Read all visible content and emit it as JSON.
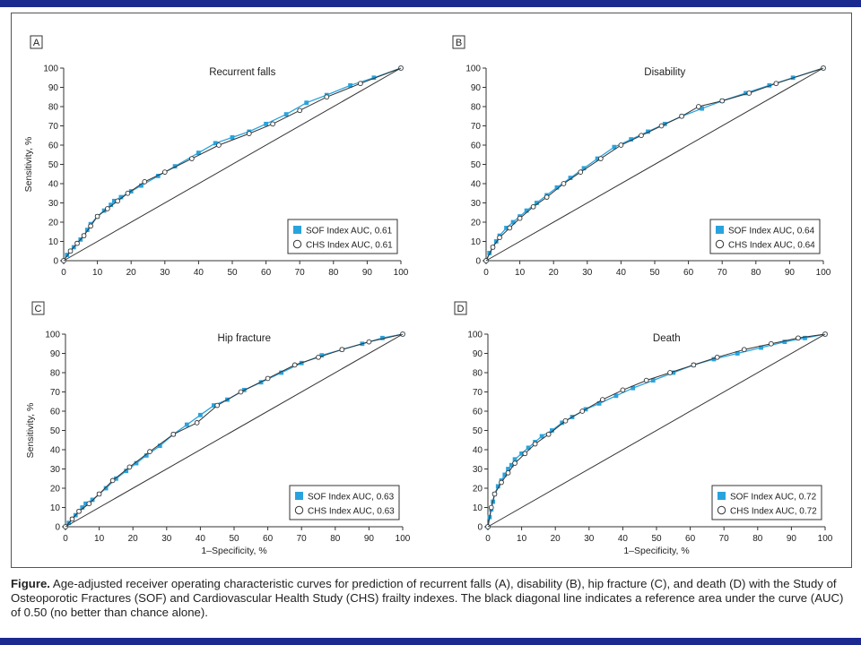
{
  "caption": {
    "label": "Figure.",
    "text": "Age-adjusted receiver operating characteristic curves for prediction of recurrent falls (A), disability (B), hip fracture (C), and death (D) with the Study of Osteoporotic Fractures (SOF) and Cardiovascular Health Study (CHS) frailty indexes. The black diagonal line indicates a reference area under the curve (AUC) of 0.50 (no better than chance alone)."
  },
  "colors": {
    "sof": "#29a3dd",
    "chs": "#333333",
    "reference": "#333333",
    "frame": "#555555"
  },
  "chart_data": [
    {
      "type": "line",
      "panel": "A",
      "title": "Recurrent falls",
      "xlabel": "",
      "ylabel": "Sensitivity, %",
      "xlim": [
        0,
        100
      ],
      "ylim": [
        0,
        100
      ],
      "ticks": [
        0,
        10,
        20,
        30,
        40,
        50,
        60,
        70,
        80,
        90,
        100
      ],
      "legend_position": "bottom-right",
      "series": [
        {
          "name": "SOF Index AUC, 0.61",
          "marker": "square",
          "x": [
            0,
            1,
            2,
            3,
            4,
            5,
            6,
            7,
            8,
            10,
            12,
            14,
            15,
            17,
            20,
            23,
            28,
            33,
            40,
            45,
            50,
            55,
            60,
            66,
            72,
            78,
            85,
            92,
            100
          ],
          "y": [
            0,
            3,
            5,
            7,
            9,
            11,
            13,
            16,
            19,
            23,
            26,
            29,
            31,
            33,
            36,
            39,
            44,
            49,
            56,
            61,
            64,
            67,
            71,
            76,
            82,
            86,
            91,
            95,
            100
          ]
        },
        {
          "name": "CHS Index AUC, 0.61",
          "marker": "circle",
          "x": [
            0,
            2,
            4,
            6,
            8,
            10,
            13,
            16,
            19,
            24,
            30,
            38,
            46,
            55,
            62,
            70,
            78,
            88,
            100
          ],
          "y": [
            0,
            5,
            9,
            13,
            18,
            23,
            27,
            31,
            35,
            41,
            46,
            53,
            60,
            66,
            71,
            78,
            85,
            92,
            100
          ]
        },
        {
          "name": "Reference",
          "marker": "none",
          "x": [
            0,
            100
          ],
          "y": [
            0,
            100
          ]
        }
      ]
    },
    {
      "type": "line",
      "panel": "B",
      "title": "Disability",
      "xlabel": "",
      "ylabel": "",
      "xlim": [
        0,
        100
      ],
      "ylim": [
        0,
        100
      ],
      "ticks": [
        0,
        10,
        20,
        30,
        40,
        50,
        60,
        70,
        80,
        90,
        100
      ],
      "legend_position": "bottom-right",
      "series": [
        {
          "name": "SOF Index AUC, 0.64",
          "marker": "square",
          "x": [
            0,
            1,
            2,
            3,
            4,
            6,
            8,
            10,
            12,
            15,
            18,
            21,
            25,
            29,
            33,
            38,
            43,
            48,
            53,
            58,
            64,
            70,
            77,
            84,
            91,
            100
          ],
          "y": [
            0,
            4,
            7,
            10,
            13,
            17,
            20,
            23,
            26,
            30,
            34,
            38,
            43,
            48,
            53,
            59,
            63,
            67,
            71,
            75,
            79,
            83,
            87,
            91,
            95,
            100
          ]
        },
        {
          "name": "CHS Index AUC, 0.64",
          "marker": "circle",
          "x": [
            0,
            2,
            4,
            7,
            10,
            14,
            18,
            23,
            28,
            34,
            40,
            46,
            52,
            58,
            63,
            70,
            78,
            86,
            100
          ],
          "y": [
            0,
            7,
            12,
            17,
            22,
            28,
            33,
            40,
            46,
            53,
            60,
            65,
            70,
            75,
            80,
            83,
            87,
            92,
            100
          ]
        },
        {
          "name": "Reference",
          "marker": "none",
          "x": [
            0,
            100
          ],
          "y": [
            0,
            100
          ]
        }
      ]
    },
    {
      "type": "line",
      "panel": "C",
      "title": "Hip fracture",
      "xlabel": "1–Specificity, %",
      "ylabel": "Sensitivity, %",
      "xlim": [
        0,
        100
      ],
      "ylim": [
        0,
        100
      ],
      "ticks": [
        0,
        10,
        20,
        30,
        40,
        50,
        60,
        70,
        80,
        90,
        100
      ],
      "legend_position": "bottom-right",
      "series": [
        {
          "name": "SOF Index AUC, 0.63",
          "marker": "square",
          "x": [
            0,
            1,
            2,
            3,
            4,
            5,
            6,
            8,
            10,
            12,
            15,
            18,
            21,
            24,
            28,
            32,
            36,
            40,
            44,
            48,
            53,
            58,
            64,
            70,
            76,
            82,
            88,
            94,
            100
          ],
          "y": [
            0,
            2,
            4,
            6,
            8,
            10,
            12,
            14,
            17,
            20,
            25,
            29,
            33,
            37,
            42,
            48,
            53,
            58,
            63,
            66,
            71,
            75,
            80,
            85,
            89,
            92,
            95,
            98,
            100
          ]
        },
        {
          "name": "CHS Index AUC, 0.63",
          "marker": "circle",
          "x": [
            0,
            2,
            4,
            7,
            10,
            14,
            19,
            25,
            32,
            39,
            45,
            52,
            60,
            68,
            75,
            82,
            90,
            100
          ],
          "y": [
            0,
            4,
            8,
            12,
            17,
            24,
            31,
            39,
            48,
            54,
            63,
            70,
            77,
            84,
            88,
            92,
            96,
            100
          ]
        },
        {
          "name": "Reference",
          "marker": "none",
          "x": [
            0,
            100
          ],
          "y": [
            0,
            100
          ]
        }
      ]
    },
    {
      "type": "line",
      "panel": "D",
      "title": "Death",
      "xlabel": "1–Specificity, %",
      "ylabel": "",
      "xlim": [
        0,
        100
      ],
      "ylim": [
        0,
        100
      ],
      "ticks": [
        0,
        10,
        20,
        30,
        40,
        50,
        60,
        70,
        80,
        90,
        100
      ],
      "legend_position": "bottom-right",
      "series": [
        {
          "name": "SOF Index AUC, 0.72",
          "marker": "square",
          "x": [
            0,
            0.5,
            1,
            1.5,
            2,
            3,
            4,
            5,
            6,
            7,
            8,
            10,
            12,
            14,
            16,
            19,
            22,
            25,
            29,
            33,
            38,
            43,
            49,
            55,
            61,
            67,
            74,
            81,
            88,
            94,
            100
          ],
          "y": [
            0,
            5,
            9,
            13,
            17,
            21,
            24,
            27,
            30,
            32,
            35,
            38,
            41,
            44,
            47,
            50,
            54,
            57,
            61,
            64,
            68,
            72,
            76,
            80,
            84,
            87,
            90,
            93,
            96,
            98,
            100
          ]
        },
        {
          "name": "CHS Index AUC, 0.72",
          "marker": "circle",
          "x": [
            0,
            1,
            2,
            4,
            6,
            8,
            11,
            14,
            18,
            23,
            28,
            34,
            40,
            47,
            54,
            61,
            68,
            76,
            84,
            92,
            100
          ],
          "y": [
            0,
            10,
            17,
            23,
            28,
            33,
            38,
            43,
            48,
            55,
            60,
            66,
            71,
            76,
            80,
            84,
            88,
            92,
            95,
            98,
            100
          ]
        },
        {
          "name": "Reference",
          "marker": "none",
          "x": [
            0,
            100
          ],
          "y": [
            0,
            100
          ]
        }
      ]
    }
  ]
}
